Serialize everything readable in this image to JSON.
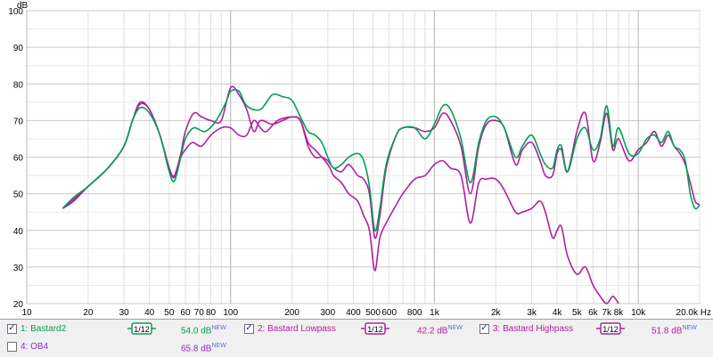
{
  "chart_data": {
    "type": "line",
    "ylabel": "dB",
    "xunit": "Hz",
    "xscale": "log",
    "xlim": [
      10,
      20000
    ],
    "ylim": [
      20,
      100
    ],
    "yticks": [
      20,
      30,
      40,
      50,
      60,
      70,
      80,
      90,
      100
    ],
    "xticks": [
      {
        "v": 10,
        "l": "10"
      },
      {
        "v": 20,
        "l": "20"
      },
      {
        "v": 30,
        "l": "30"
      },
      {
        "v": 40,
        "l": "40"
      },
      {
        "v": 50,
        "l": "50"
      },
      {
        "v": 60,
        "l": "60"
      },
      {
        "v": 70,
        "l": "70"
      },
      {
        "v": 80,
        "l": "80"
      },
      {
        "v": 100,
        "l": "100"
      },
      {
        "v": 200,
        "l": "200"
      },
      {
        "v": 300,
        "l": "300"
      },
      {
        "v": 400,
        "l": "400"
      },
      {
        "v": 500,
        "l": "500"
      },
      {
        "v": 600,
        "l": "600"
      },
      {
        "v": 800,
        "l": "800"
      },
      {
        "v": 1000,
        "l": "1k"
      },
      {
        "v": 2000,
        "l": "2k"
      },
      {
        "v": 3000,
        "l": "3k"
      },
      {
        "v": 4000,
        "l": "4k"
      },
      {
        "v": 5000,
        "l": "5k"
      },
      {
        "v": 6000,
        "l": "6k"
      },
      {
        "v": 7000,
        "l": "7k"
      },
      {
        "v": 8000,
        "l": "8k"
      },
      {
        "v": 10000,
        "l": "10k"
      },
      {
        "v": 20000,
        "l": "20.0k Hz"
      }
    ],
    "grid": true,
    "series": [
      {
        "name": "Bastard2",
        "color": "#00a050",
        "points": [
          [
            15,
            46
          ],
          [
            17,
            49
          ],
          [
            20,
            52
          ],
          [
            25,
            57
          ],
          [
            30,
            63
          ],
          [
            33,
            70
          ],
          [
            36,
            73.5
          ],
          [
            40,
            72
          ],
          [
            45,
            66
          ],
          [
            50,
            56
          ],
          [
            53,
            53.5
          ],
          [
            57,
            60
          ],
          [
            60,
            65
          ],
          [
            66,
            68
          ],
          [
            75,
            67
          ],
          [
            85,
            70
          ],
          [
            95,
            75
          ],
          [
            100,
            78
          ],
          [
            110,
            78
          ],
          [
            120,
            74
          ],
          [
            140,
            73
          ],
          [
            160,
            77
          ],
          [
            180,
            76.5
          ],
          [
            200,
            75.5
          ],
          [
            220,
            71
          ],
          [
            240,
            67
          ],
          [
            260,
            66
          ],
          [
            280,
            64
          ],
          [
            300,
            60
          ],
          [
            320,
            57
          ],
          [
            350,
            58
          ],
          [
            380,
            60
          ],
          [
            420,
            61
          ],
          [
            450,
            59
          ],
          [
            480,
            52
          ],
          [
            510,
            40
          ],
          [
            540,
            46
          ],
          [
            580,
            58
          ],
          [
            650,
            66
          ],
          [
            700,
            68
          ],
          [
            800,
            68
          ],
          [
            900,
            65
          ],
          [
            1000,
            69
          ],
          [
            1100,
            74
          ],
          [
            1200,
            73
          ],
          [
            1350,
            65
          ],
          [
            1500,
            53
          ],
          [
            1650,
            64
          ],
          [
            1800,
            70
          ],
          [
            2000,
            71
          ],
          [
            2200,
            68
          ],
          [
            2500,
            60
          ],
          [
            2700,
            63
          ],
          [
            3000,
            66
          ],
          [
            3300,
            61
          ],
          [
            3500,
            58
          ],
          [
            3800,
            57
          ],
          [
            4000,
            62
          ],
          [
            4200,
            63
          ],
          [
            4500,
            56
          ],
          [
            5000,
            65
          ],
          [
            5500,
            68
          ],
          [
            6000,
            62
          ],
          [
            6500,
            65
          ],
          [
            7000,
            74
          ],
          [
            7500,
            63
          ],
          [
            8000,
            68
          ],
          [
            9000,
            61
          ],
          [
            10000,
            61
          ],
          [
            11000,
            65
          ],
          [
            12000,
            66
          ],
          [
            13000,
            64
          ],
          [
            14000,
            67
          ],
          [
            15000,
            63
          ],
          [
            16000,
            62
          ],
          [
            17000,
            59
          ],
          [
            18000,
            50
          ],
          [
            19000,
            46
          ],
          [
            20000,
            47
          ]
        ]
      },
      {
        "name": "Bastard Lowpass",
        "color": "#b020a0",
        "points": [
          [
            15,
            46
          ],
          [
            17,
            48
          ],
          [
            20,
            52
          ],
          [
            25,
            57
          ],
          [
            30,
            63
          ],
          [
            33,
            70
          ],
          [
            36,
            74.5
          ],
          [
            40,
            73
          ],
          [
            45,
            66
          ],
          [
            50,
            57
          ],
          [
            53,
            54.5
          ],
          [
            57,
            60
          ],
          [
            60,
            62
          ],
          [
            65,
            64
          ],
          [
            72,
            63
          ],
          [
            80,
            66
          ],
          [
            90,
            68
          ],
          [
            100,
            68
          ],
          [
            110,
            66
          ],
          [
            120,
            66
          ],
          [
            130,
            70
          ],
          [
            140,
            68
          ],
          [
            150,
            67
          ],
          [
            170,
            70
          ],
          [
            200,
            71
          ],
          [
            220,
            70
          ],
          [
            240,
            64
          ],
          [
            260,
            62
          ],
          [
            300,
            58
          ],
          [
            320,
            55
          ],
          [
            350,
            53
          ],
          [
            380,
            50
          ],
          [
            420,
            48
          ],
          [
            450,
            44
          ],
          [
            480,
            40
          ],
          [
            510,
            29
          ],
          [
            540,
            38
          ],
          [
            580,
            42
          ],
          [
            650,
            47
          ],
          [
            700,
            50
          ],
          [
            800,
            54
          ],
          [
            900,
            55
          ],
          [
            1000,
            58
          ],
          [
            1100,
            59
          ],
          [
            1200,
            57
          ],
          [
            1350,
            55
          ],
          [
            1500,
            42
          ],
          [
            1650,
            53
          ],
          [
            1800,
            54
          ],
          [
            2000,
            54
          ],
          [
            2200,
            51
          ],
          [
            2500,
            45
          ],
          [
            2700,
            45
          ],
          [
            3000,
            46
          ],
          [
            3300,
            48
          ],
          [
            3500,
            45
          ],
          [
            3800,
            38
          ],
          [
            4000,
            40
          ],
          [
            4200,
            41
          ],
          [
            4500,
            33
          ],
          [
            5000,
            28
          ],
          [
            5500,
            30
          ],
          [
            6000,
            25
          ],
          [
            6500,
            22
          ],
          [
            7000,
            20
          ],
          [
            7500,
            22
          ],
          [
            8000,
            20
          ]
        ]
      },
      {
        "name": "Bastard Highpass",
        "color": "#b020a0",
        "points": [
          [
            15,
            46
          ],
          [
            17,
            48.5
          ],
          [
            20,
            52
          ],
          [
            25,
            57
          ],
          [
            30,
            63
          ],
          [
            33,
            70
          ],
          [
            36,
            75
          ],
          [
            40,
            73
          ],
          [
            45,
            66
          ],
          [
            50,
            57
          ],
          [
            53,
            55
          ],
          [
            57,
            61
          ],
          [
            60,
            67
          ],
          [
            66,
            72
          ],
          [
            72,
            71
          ],
          [
            80,
            70
          ],
          [
            90,
            70
          ],
          [
            100,
            79
          ],
          [
            110,
            77
          ],
          [
            120,
            73
          ],
          [
            130,
            67
          ],
          [
            140,
            70
          ],
          [
            160,
            69
          ],
          [
            180,
            70
          ],
          [
            200,
            71
          ],
          [
            220,
            70
          ],
          [
            240,
            63
          ],
          [
            260,
            60
          ],
          [
            280,
            60
          ],
          [
            300,
            59
          ],
          [
            320,
            57
          ],
          [
            350,
            56
          ],
          [
            380,
            58
          ],
          [
            420,
            55
          ],
          [
            450,
            54
          ],
          [
            480,
            50
          ],
          [
            510,
            38
          ],
          [
            540,
            44
          ],
          [
            580,
            57
          ],
          [
            650,
            66
          ],
          [
            700,
            68
          ],
          [
            800,
            68
          ],
          [
            900,
            67
          ],
          [
            1000,
            68
          ],
          [
            1100,
            72
          ],
          [
            1200,
            70
          ],
          [
            1350,
            63
          ],
          [
            1500,
            50
          ],
          [
            1650,
            63
          ],
          [
            1800,
            69
          ],
          [
            2000,
            70
          ],
          [
            2200,
            68
          ],
          [
            2500,
            58
          ],
          [
            2700,
            62
          ],
          [
            3000,
            64
          ],
          [
            3300,
            59
          ],
          [
            3500,
            55
          ],
          [
            3800,
            55
          ],
          [
            4000,
            61
          ],
          [
            4200,
            62
          ],
          [
            4500,
            56
          ],
          [
            5000,
            67
          ],
          [
            5500,
            72
          ],
          [
            6000,
            59
          ],
          [
            6500,
            64
          ],
          [
            7000,
            72
          ],
          [
            7500,
            62
          ],
          [
            8000,
            65
          ],
          [
            9000,
            59
          ],
          [
            10000,
            62
          ],
          [
            11000,
            64
          ],
          [
            12000,
            67
          ],
          [
            13000,
            63
          ],
          [
            14000,
            66
          ],
          [
            15000,
            63
          ],
          [
            16000,
            61
          ],
          [
            17000,
            58
          ],
          [
            18000,
            53
          ],
          [
            19000,
            48
          ],
          [
            20000,
            47
          ]
        ]
      }
    ]
  },
  "legend": {
    "row1": [
      {
        "id": "1",
        "label": "1: Bastard2",
        "checked": "✓",
        "level": "54.0 dB",
        "new": "NEW",
        "smoothing": "1/12",
        "color": "#00a050"
      },
      {
        "id": "2",
        "label": "2: Bastard Lowpass",
        "checked": "✓",
        "level": "42.2 dB",
        "new": "NEW",
        "smoothing": "1/12",
        "color": "#b020a0"
      },
      {
        "id": "3",
        "label": "3: Bastard Highpass",
        "checked": "✓",
        "level": "51.8 dB",
        "new": "NEW",
        "smoothing": "1/12",
        "color": "#b020a0"
      }
    ],
    "row2": [
      {
        "id": "4",
        "label": "4: OB4",
        "checked": "",
        "level": "65.8 dB",
        "new": "NEW",
        "color": "#8a2fc8"
      }
    ]
  }
}
